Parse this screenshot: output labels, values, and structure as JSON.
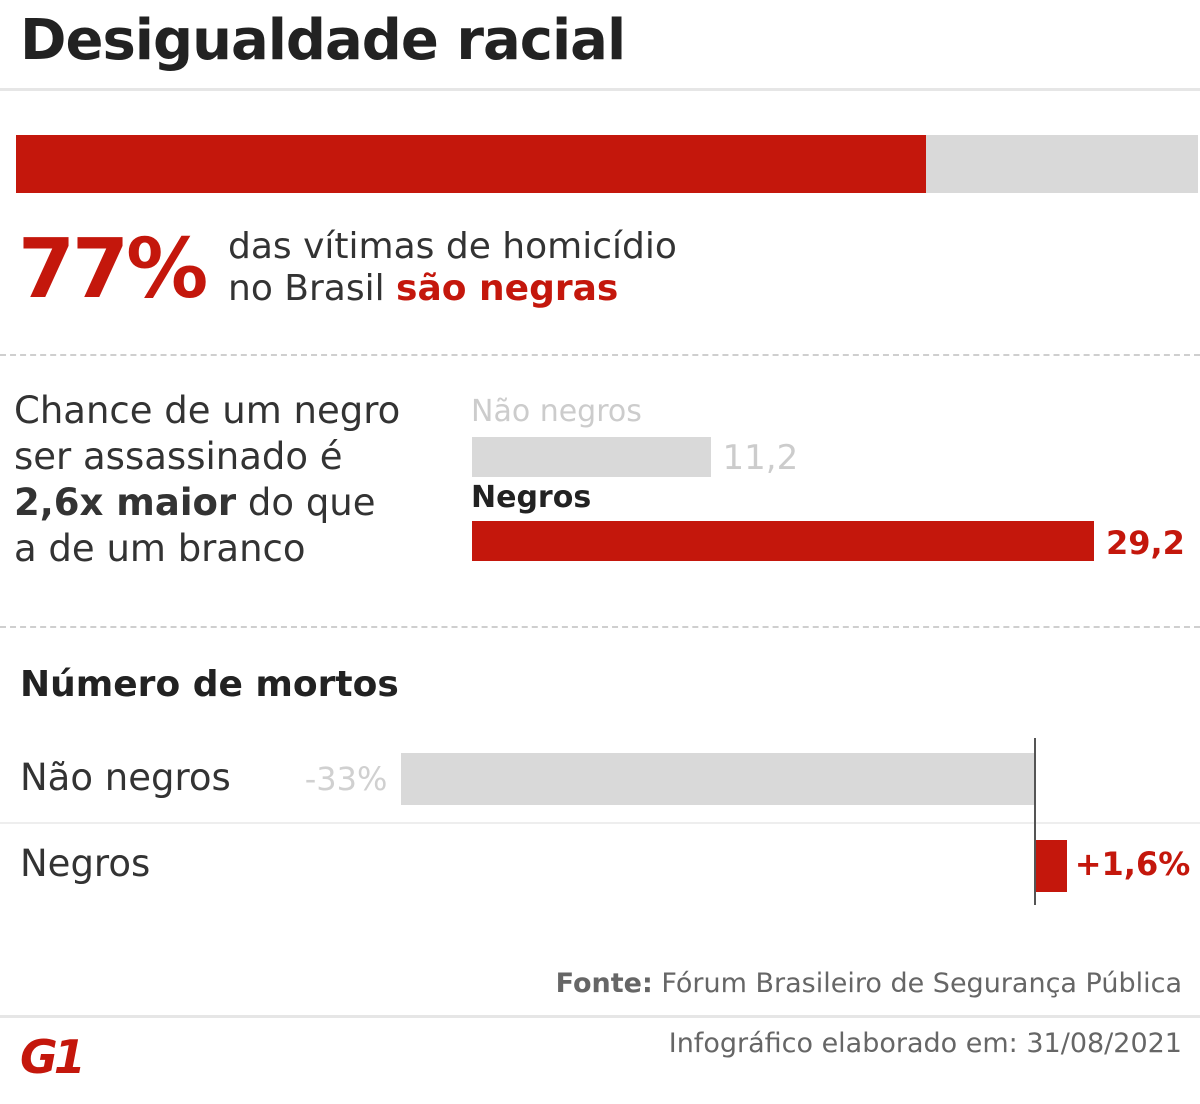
{
  "title": "Desigualdade racial",
  "colors": {
    "accent": "#c4170c",
    "neutral": "#d9d9d9"
  },
  "share": {
    "value_label": "77%",
    "value": 77,
    "line1": "das vítimas de homicídio",
    "line2_prefix": "no Brasil ",
    "line2_highlight": "são negras"
  },
  "chance": {
    "line1": "Chance de um negro",
    "line2": "ser assassinado é",
    "line3_bold": "2,6x maior",
    "line3_rest": " do que",
    "line4": "a de um branco"
  },
  "chart_data": [
    {
      "type": "bar",
      "categories": [
        "Não negros",
        "Negros"
      ],
      "values": [
        11.2,
        29.2
      ],
      "labels": [
        "11,2",
        "29,2"
      ]
    },
    {
      "type": "bar",
      "title": "Número de mortos",
      "categories": [
        "Não negros",
        "Negros"
      ],
      "values": [
        -33,
        1.6
      ],
      "labels": [
        "-33%",
        "+1,6%"
      ]
    }
  ],
  "footer": {
    "source_label": "Fonte:",
    "source": " Fórum Brasileiro de Segurança Pública",
    "date": "Infográfico elaborado em: 31/08/2021",
    "logo": "G1"
  }
}
